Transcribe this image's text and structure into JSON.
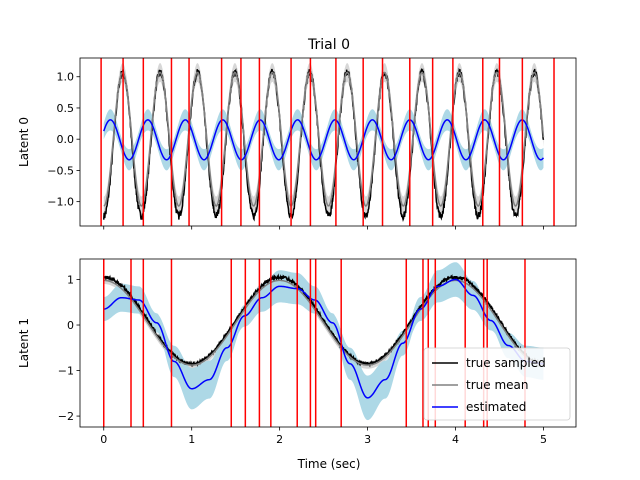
{
  "chart_data": {
    "title": "Trial 0",
    "xlabel": "Time (sec)",
    "x_ticks": [
      0,
      1,
      2,
      3,
      4,
      5
    ],
    "xlim": [
      -0.27,
      5.37
    ],
    "legend": {
      "placement": "lower-right",
      "entries": [
        "true sampled",
        "true mean",
        "estimated"
      ]
    },
    "colors": {
      "true_sampled": "#000000",
      "true_mean": "#808080",
      "true_band": "#d3d3d3",
      "estimated": "#0000ff",
      "estimated_band": "#add8e6",
      "events": "#ff0000"
    },
    "subplots": [
      {
        "type": "line",
        "ylabel": "Latent 0",
        "ylim": [
          -1.39,
          1.3
        ],
        "y_ticks": [
          1.0,
          0.5,
          0.0,
          -0.5,
          -1.0
        ],
        "y_tick_labels": [
          "1.0",
          "0.5",
          "0.0",
          "−0.5",
          "−1.0"
        ],
        "x_tick_labels_visible": false,
        "series": [
          {
            "key": "true_sampled",
            "model": "sine",
            "amplitude": 1.15,
            "frequency_hz": 2.35,
            "phase": -1.6,
            "offset": -0.08,
            "noise": 0.06
          },
          {
            "key": "true_mean",
            "model": "sine",
            "amplitude": 1.07,
            "frequency_hz": 2.35,
            "phase": -1.6,
            "offset": 0.0,
            "band": 0.15
          },
          {
            "key": "estimated",
            "model": "sine",
            "amplitude": 0.32,
            "frequency_hz": 2.35,
            "phase": 0.45,
            "offset": -0.01,
            "band_base": 0.12,
            "band_amp": 0.05
          }
        ],
        "events_sec": [
          -0.03,
          0.22,
          0.45,
          0.77,
          0.97,
          1.34,
          1.56,
          1.77,
          2.13,
          2.35,
          2.64,
          2.95,
          3.17,
          3.48,
          3.74,
          3.97,
          4.31,
          4.5,
          4.76,
          5.12
        ]
      },
      {
        "type": "line",
        "ylabel": "Latent 1",
        "ylim": [
          -2.24,
          1.45
        ],
        "y_ticks": [
          1,
          0,
          -1,
          -2
        ],
        "y_tick_labels": [
          "1",
          "0",
          "−1",
          "−2"
        ],
        "x_tick_labels_visible": true,
        "series": [
          {
            "key": "true_sampled",
            "model": "cosine",
            "amplitude": 0.95,
            "frequency_hz": 0.5,
            "phase": 0.0,
            "offset": 0.1,
            "noise": 0.035
          },
          {
            "key": "true_mean",
            "model": "cosine",
            "amplitude": 0.93,
            "frequency_hz": 0.5,
            "phase": 0.0,
            "offset": 0.05,
            "band": 0.08
          },
          {
            "key": "estimated",
            "points": [
              [
                0.0,
                0.35
              ],
              [
                0.2,
                0.6
              ],
              [
                0.4,
                0.55
              ],
              [
                0.6,
                0.05
              ],
              [
                0.8,
                -0.8
              ],
              [
                1.0,
                -1.4
              ],
              [
                1.2,
                -1.2
              ],
              [
                1.4,
                -0.5
              ],
              [
                1.6,
                0.2
              ],
              [
                1.8,
                0.6
              ],
              [
                2.0,
                0.85
              ],
              [
                2.2,
                0.8
              ],
              [
                2.4,
                0.55
              ],
              [
                2.6,
                0.05
              ],
              [
                2.8,
                -0.85
              ],
              [
                3.0,
                -1.6
              ],
              [
                3.2,
                -1.2
              ],
              [
                3.4,
                -0.4
              ],
              [
                3.6,
                0.35
              ],
              [
                3.8,
                0.85
              ],
              [
                4.0,
                1.0
              ],
              [
                4.2,
                0.65
              ],
              [
                4.4,
                0.1
              ],
              [
                4.6,
                -0.45
              ],
              [
                4.8,
                -0.8
              ],
              [
                5.0,
                -0.85
              ]
            ],
            "band_base": 0.2,
            "band_scale": 0.18
          }
        ],
        "events_sec": [
          0.0,
          0.31,
          0.45,
          0.77,
          1.45,
          1.61,
          1.77,
          1.9,
          2.2,
          2.35,
          2.41,
          2.7,
          3.44,
          3.63,
          3.69,
          3.77,
          4.11,
          4.32,
          4.36,
          4.79
        ]
      }
    ]
  }
}
